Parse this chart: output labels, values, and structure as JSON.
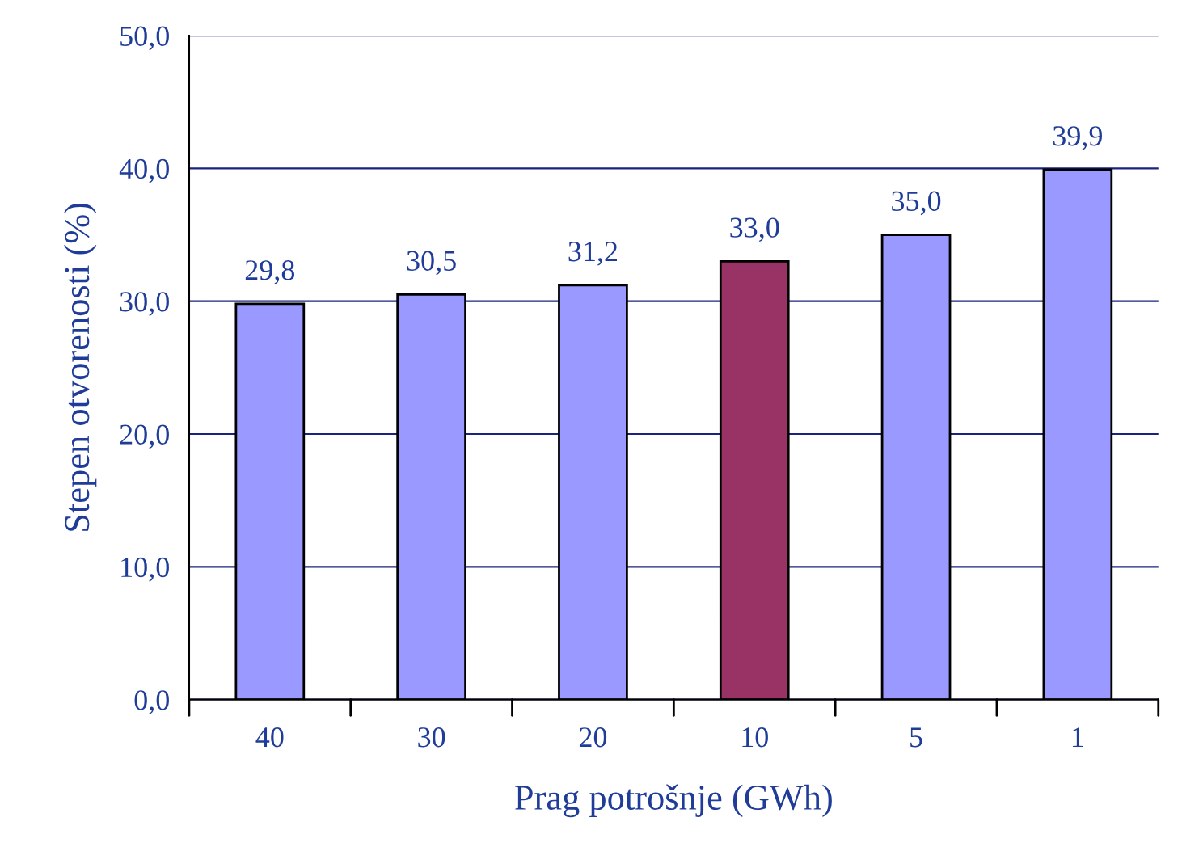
{
  "chart_data": {
    "type": "bar",
    "xlabel": "Prag potrošnje (GWh)",
    "ylabel": "Stepen otvorenosti (%)",
    "categories": [
      "40",
      "30",
      "20",
      "10",
      "5",
      "1"
    ],
    "values": [
      29.8,
      30.5,
      31.2,
      33.0,
      35.0,
      39.9
    ],
    "colors": [
      "#9999ff",
      "#9999ff",
      "#9999ff",
      "#993366",
      "#9999ff",
      "#9999ff"
    ],
    "value_labels": [
      "29,8",
      "30,5",
      "31,2",
      "33,0",
      "35,0",
      "39,9"
    ],
    "ylim": [
      0,
      50
    ],
    "yticks": [
      {
        "value": 0,
        "label": "0,0"
      },
      {
        "value": 10,
        "label": "10,0"
      },
      {
        "value": 20,
        "label": "20,0"
      },
      {
        "value": 30,
        "label": "30,0"
      },
      {
        "value": 40,
        "label": "40,0"
      },
      {
        "value": 50,
        "label": "50,0"
      }
    ],
    "grid": "y",
    "legend": false
  }
}
